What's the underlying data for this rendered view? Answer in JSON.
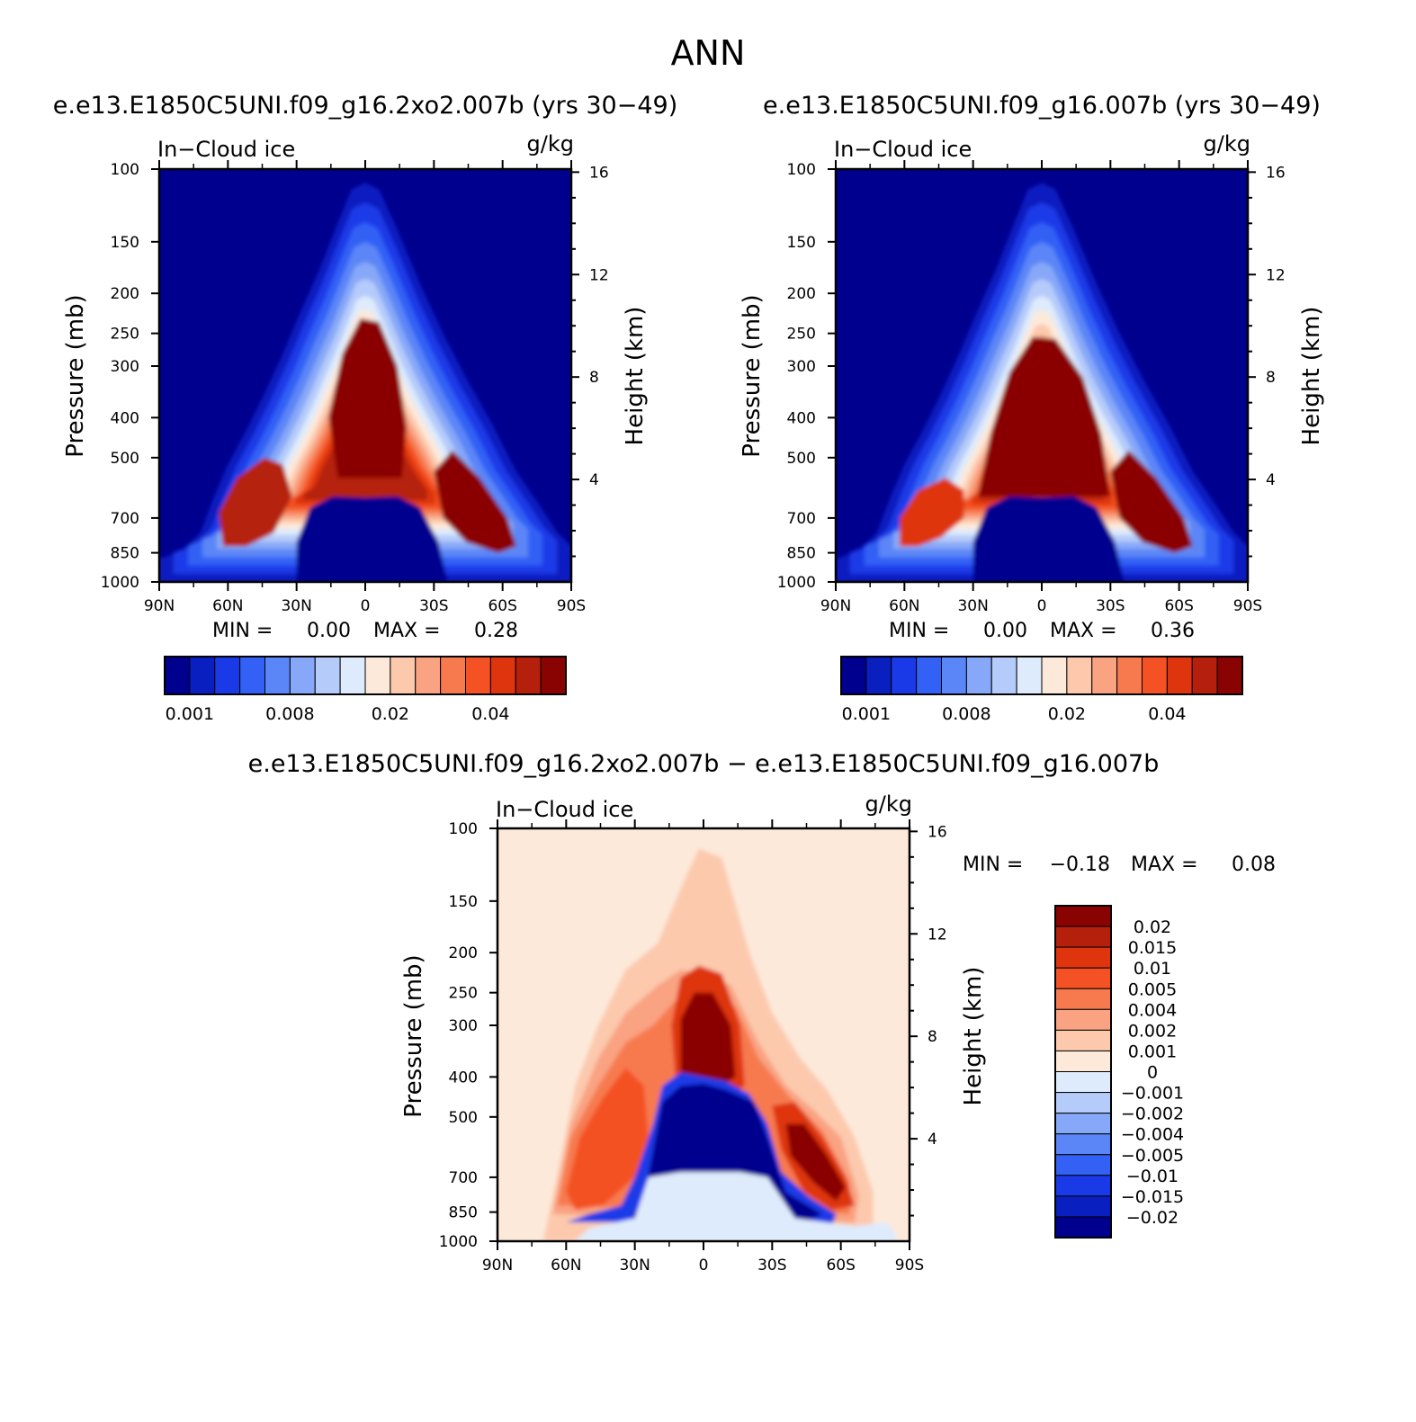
{
  "figure": {
    "title": "ANN"
  },
  "panels": {
    "top_left": {
      "title": "e.e13.E1850C5UNI.f09_g16.2xo2.007b (yrs 30−49)",
      "variable": "In−Cloud ice",
      "units": "g/kg",
      "min_text": "MIN =",
      "min_value": "0.00",
      "max_text": "MAX =",
      "max_value": "0.28"
    },
    "top_right": {
      "title": "e.e13.E1850C5UNI.f09_g16.007b (yrs 30−49)",
      "variable": "In−Cloud ice",
      "units": "g/kg",
      "min_text": "MIN =",
      "min_value": "0.00",
      "max_text": "MAX =",
      "max_value": "0.36"
    },
    "bottom": {
      "title": "e.e13.E1850C5UNI.f09_g16.2xo2.007b − e.e13.E1850C5UNI.f09_g16.007b",
      "variable": "In−Cloud ice",
      "units": "g/kg",
      "min_text": "MIN =",
      "min_value": "−0.18",
      "max_text": "MAX =",
      "max_value": "0.08"
    }
  },
  "axes": {
    "ylabel": "Pressure (mb)",
    "y2label": "Height (km)",
    "pressure_ticks": [
      "100",
      "150",
      "200",
      "250",
      "300",
      "400",
      "500",
      "700",
      "850",
      "1000"
    ],
    "height_ticks": [
      "16",
      "12",
      "8",
      "4"
    ],
    "lat_ticks": [
      "90N",
      "60N",
      "30N",
      "0",
      "30S",
      "60S",
      "90S"
    ]
  },
  "colorbars": {
    "abs_labels": [
      "0.001",
      "0.008",
      "0.02",
      "0.04"
    ],
    "abs_colors": [
      "#00008f",
      "#0a1fc0",
      "#1a3ae8",
      "#3360f5",
      "#5b86f7",
      "#87a8f8",
      "#b5cbfa",
      "#deebfc",
      "#fde9da",
      "#fcc9ad",
      "#f9a382",
      "#f77a4f",
      "#f45124",
      "#de350f",
      "#b5200c",
      "#8a0303"
    ],
    "diff_labels": [
      "0.02",
      "0.015",
      "0.01",
      "0.005",
      "0.004",
      "0.002",
      "0.001",
      "0",
      "−0.001",
      "−0.002",
      "−0.004",
      "−0.005",
      "−0.01",
      "−0.015",
      "−0.02"
    ],
    "diff_colors": [
      "#8a0303",
      "#b5200c",
      "#de350f",
      "#f45124",
      "#f77a4f",
      "#f9a382",
      "#fcc9ad",
      "#fde9da",
      "#deebfc",
      "#b5cbfa",
      "#87a8f8",
      "#5b86f7",
      "#3360f5",
      "#1a3ae8",
      "#0a1fc0",
      "#00008f"
    ]
  },
  "chart_data": [
    {
      "type": "heatmap",
      "title": "e.e13.E1850C5UNI.f09_g16.2xo2.007b (yrs 30−49)",
      "variable": "In−Cloud ice",
      "units": "g/kg",
      "x_ticks": [
        "90N",
        "60N",
        "30N",
        "0",
        "30S",
        "60S",
        "90S"
      ],
      "xlim": [
        90,
        -90
      ],
      "ylabel": "Pressure (mb)",
      "ylim": [
        1000,
        100
      ],
      "y_scale": "log",
      "y2label": "Height (km)",
      "min": 0.0,
      "max": 0.28,
      "contour_labels": [
        0.001,
        0.008,
        0.02,
        0.04
      ],
      "features": [
        {
          "region": "tropical upper troposphere core",
          "lat_range": [
            10,
            -15
          ],
          "pressure_range": [
            550,
            230
          ],
          "value_class": "max (>0.04)"
        },
        {
          "region": "NH mid-latitude lower troposphere",
          "lat_range": [
            65,
            30
          ],
          "pressure_range": [
            850,
            550
          ],
          "value_class": "high (0.02-0.04)"
        },
        {
          "region": "SH mid-latitude lower troposphere",
          "lat_range": [
            -25,
            -65
          ],
          "pressure_range": [
            850,
            500
          ],
          "value_class": "max (>0.04)"
        },
        {
          "region": "tropical lower troposphere",
          "lat_range": [
            30,
            -25
          ],
          "pressure_range": [
            1000,
            650
          ],
          "value_class": "min (<0.001)"
        }
      ]
    },
    {
      "type": "heatmap",
      "title": "e.e13.E1850C5UNI.f09_g16.007b (yrs 30−49)",
      "variable": "In−Cloud ice",
      "units": "g/kg",
      "x_ticks": [
        "90N",
        "60N",
        "30N",
        "0",
        "30S",
        "60S",
        "90S"
      ],
      "xlim": [
        90,
        -90
      ],
      "ylabel": "Pressure (mb)",
      "ylim": [
        1000,
        100
      ],
      "y_scale": "log",
      "y2label": "Height (km)",
      "min": 0.0,
      "max": 0.36,
      "contour_labels": [
        0.001,
        0.008,
        0.02,
        0.04
      ],
      "features": [
        {
          "region": "tropical upper troposphere core",
          "lat_range": [
            25,
            -25
          ],
          "pressure_range": [
            620,
            250
          ],
          "value_class": "max (>0.04)"
        },
        {
          "region": "SH mid-latitude lower troposphere",
          "lat_range": [
            -25,
            -65
          ],
          "pressure_range": [
            850,
            500
          ],
          "value_class": "max (>0.04)"
        },
        {
          "region": "tropical lower troposphere",
          "lat_range": [
            30,
            -25
          ],
          "pressure_range": [
            1000,
            650
          ],
          "value_class": "min (<0.001)"
        }
      ]
    },
    {
      "type": "heatmap",
      "title": "e.e13.E1850C5UNI.f09_g16.2xo2.007b − e.e13.E1850C5UNI.f09_g16.007b",
      "variable": "In−Cloud ice",
      "units": "g/kg",
      "x_ticks": [
        "90N",
        "60N",
        "30N",
        "0",
        "30S",
        "60S",
        "90S"
      ],
      "xlim": [
        90,
        -90
      ],
      "ylabel": "Pressure (mb)",
      "ylim": [
        1000,
        100
      ],
      "y_scale": "log",
      "y2label": "Height (km)",
      "min": -0.18,
      "max": 0.08,
      "contour_levels": [
        -0.02,
        -0.015,
        -0.01,
        -0.005,
        -0.004,
        -0.002,
        -0.001,
        0,
        0.001,
        0.002,
        0.004,
        0.005,
        0.01,
        0.015,
        0.02
      ],
      "features": [
        {
          "region": "tropical upper troposphere",
          "lat_range": [
            10,
            -20
          ],
          "pressure_range": [
            420,
            200
          ],
          "value_class": "positive (>0.02)"
        },
        {
          "region": "tropical mid troposphere",
          "lat_range": [
            25,
            -30
          ],
          "pressure_range": [
            650,
            380
          ],
          "value_class": "negative (<-0.02)"
        },
        {
          "region": "SH mid-latitude lower troposphere",
          "lat_range": [
            -30,
            -60
          ],
          "pressure_range": [
            800,
            450
          ],
          "value_class": "positive (>0.02)"
        },
        {
          "region": "NH mid-latitude lower troposphere",
          "lat_range": [
            60,
            30
          ],
          "pressure_range": [
            750,
            350
          ],
          "value_class": "positive (0.005-0.015)"
        }
      ]
    }
  ]
}
